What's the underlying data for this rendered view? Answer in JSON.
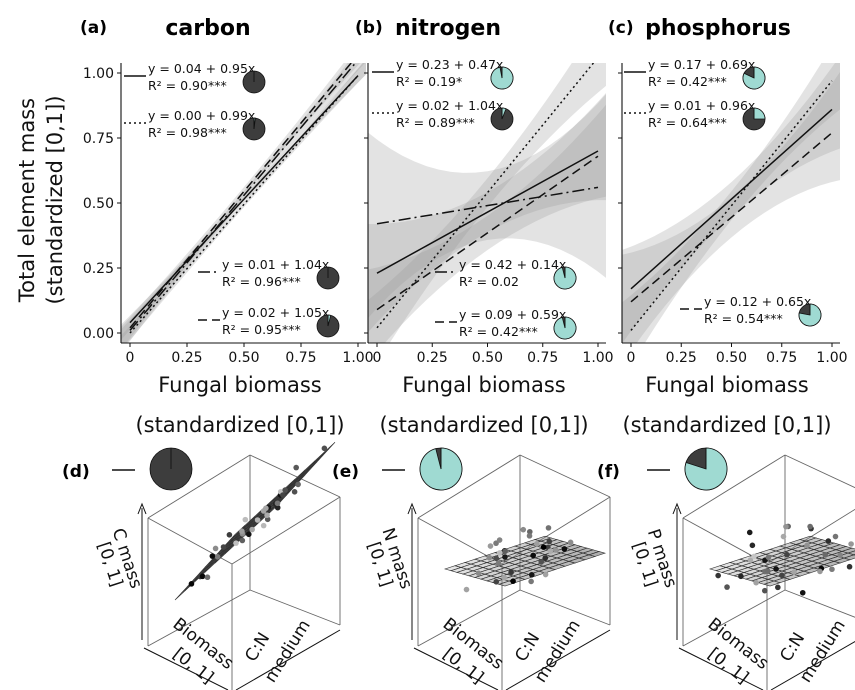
{
  "colors": {
    "panel_gray": "#2b2b2b",
    "pie_dark": "#3d3d3d",
    "pie_light": "#9fdad2",
    "band": "#9a9a9a",
    "mesh": "#333333"
  },
  "y_axis_label": [
    "Total element mass",
    "(standardized [0,1])"
  ],
  "x_axis_label": [
    "Fungal biomass",
    "(standardized [0,1])"
  ],
  "chart_data": [
    {
      "type": "line",
      "panel": "(a)",
      "title": "carbon",
      "xlim": [
        0,
        1
      ],
      "ylim": [
        0,
        1
      ],
      "xticks": [
        "0",
        "0.25",
        "0.50",
        "0.75",
        "1.00"
      ],
      "yticks": [
        "0.00",
        "0.25",
        "0.50",
        "0.75",
        "1.00"
      ],
      "series": [
        {
          "style": "solid",
          "intercept": 0.04,
          "slope": 0.95,
          "equation": "y = 0.04 + 0.95x",
          "r2": "R² = 0.90***",
          "pie_light_fraction": 0.0,
          "band": 0.02
        },
        {
          "style": "dotted",
          "intercept": 0.0,
          "slope": 0.99,
          "equation": "y = 0.00 + 0.99x",
          "r2": "R² = 0.98***",
          "pie_light_fraction": 0.02,
          "band": 0.02
        },
        {
          "style": "dashdot",
          "intercept": 0.01,
          "slope": 1.04,
          "equation": "y = 0.01 + 1.04x",
          "r2": "R² = 0.96***",
          "pie_light_fraction": 0.0,
          "band": 0.03
        },
        {
          "style": "dashed",
          "intercept": 0.02,
          "slope": 1.05,
          "equation": "y = 0.02 + 1.05x",
          "r2": "R² = 0.95***",
          "pie_light_fraction": 0.04,
          "band": 0.03
        }
      ]
    },
    {
      "type": "line",
      "panel": "(b)",
      "title": "nitrogen",
      "xlim": [
        0,
        1
      ],
      "ylim": [
        0,
        1
      ],
      "xticks": [
        "0",
        "0.25",
        "0.50",
        "0.75",
        "1.00"
      ],
      "series": [
        {
          "style": "solid",
          "intercept": 0.23,
          "slope": 0.47,
          "equation": "y = 0.23 + 0.47x",
          "r2": "R² = 0.19*",
          "pie_light_fraction": 0.97,
          "band": 0.14
        },
        {
          "style": "dotted",
          "intercept": 0.02,
          "slope": 1.04,
          "equation": "y = 0.02 + 1.04x",
          "r2": "R² = 0.89***",
          "pie_light_fraction": 0.06,
          "band": 0.1
        },
        {
          "style": "dashdot",
          "intercept": 0.42,
          "slope": 0.14,
          "equation": "y = 0.42 + 0.14x",
          "r2": "R² = 0.02",
          "pie_light_fraction": 0.96,
          "band": 0.24
        },
        {
          "style": "dashed",
          "intercept": 0.09,
          "slope": 0.59,
          "equation": "y = 0.09 + 0.59x",
          "r2": "R² = 0.42***",
          "pie_light_fraction": 0.96,
          "band": 0.12
        }
      ]
    },
    {
      "type": "line",
      "panel": "(c)",
      "title": "phosphorus",
      "xlim": [
        0,
        1
      ],
      "ylim": [
        0,
        1
      ],
      "xticks": [
        "0",
        "0.25",
        "0.50",
        "0.75",
        "1.00"
      ],
      "series": [
        {
          "style": "solid",
          "intercept": 0.17,
          "slope": 0.69,
          "equation": "y = 0.17 + 0.69x",
          "r2": "R² = 0.42***",
          "pie_light_fraction": 0.82,
          "band": 0.12
        },
        {
          "style": "dotted",
          "intercept": 0.01,
          "slope": 0.96,
          "equation": "y = 0.01 + 0.96x",
          "r2": "R² = 0.64***",
          "pie_light_fraction": 0.25,
          "band": 0.1
        },
        {
          "style": "dashed",
          "intercept": 0.12,
          "slope": 0.65,
          "equation": "y = 0.12 + 0.65x",
          "r2": "R² = 0.54***",
          "pie_light_fraction": 0.78,
          "band": 0.14
        }
      ]
    }
  ],
  "panels_3d": [
    {
      "panel": "(d)",
      "z_label": [
        "C mass",
        "[0, 1]"
      ],
      "biomass_label": [
        "Biomass",
        "[0, 1]"
      ],
      "medium_label": [
        "C:N",
        "medium"
      ],
      "pie_light_fraction": 0.0,
      "tilt": "steep"
    },
    {
      "panel": "(e)",
      "z_label": [
        "N mass",
        "[0, 1]"
      ],
      "biomass_label": [
        "Biomass",
        "[0, 1]"
      ],
      "medium_label": [
        "C:N",
        "medium"
      ],
      "pie_light_fraction": 0.96,
      "tilt": "flat"
    },
    {
      "panel": "(f)",
      "z_label": [
        "P mass",
        "[0, 1]"
      ],
      "biomass_label": [
        "Biomass",
        "[0, 1]"
      ],
      "medium_label": [
        "C:N",
        "medium"
      ],
      "pie_light_fraction": 0.8,
      "tilt": "flat"
    }
  ]
}
